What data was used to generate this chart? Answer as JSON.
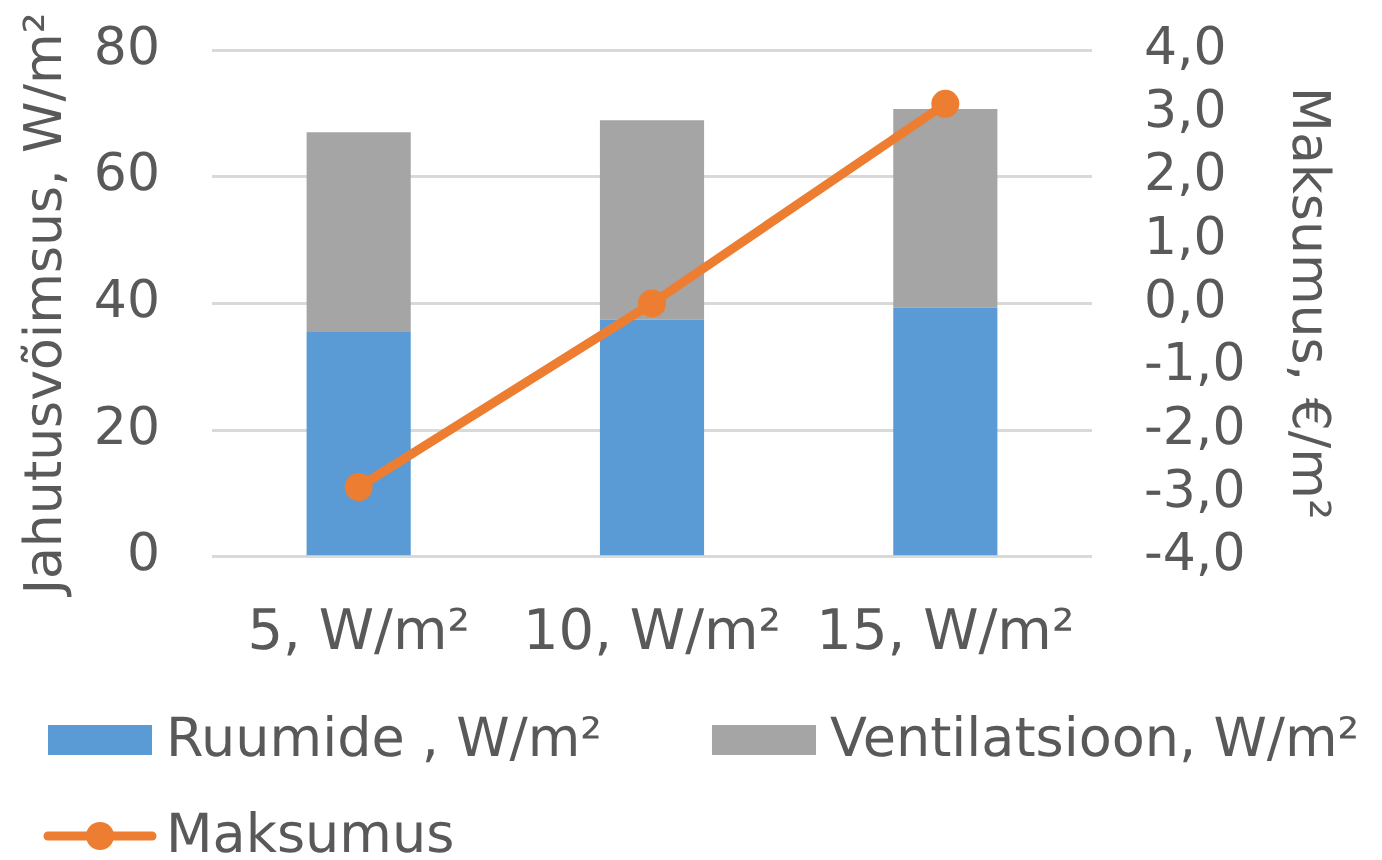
{
  "chart_data": {
    "type": "bar",
    "stacked": true,
    "categories": [
      "5, W/m²",
      "10, W/m²",
      "15, W/m²"
    ],
    "ylabel": "Jahutusvõimsus, W/m²",
    "y2label": "Maksumus, €/m²",
    "series": [
      {
        "name": "Ruumide , W/m²",
        "color": "#5b9bd5",
        "values": [
          35.5,
          37.4,
          39.3
        ]
      },
      {
        "name": "Ventilatsioon, W/m²",
        "color": "#a5a5a5",
        "values": [
          31.5,
          31.5,
          31.4
        ]
      },
      {
        "name": "Maksumus",
        "type": "line",
        "axis": "y2",
        "color": "#ed7d31",
        "values": [
          -2.9,
          0.0,
          3.15
        ]
      }
    ],
    "ylim": [
      0,
      80
    ],
    "yticks": [
      0,
      20,
      40,
      60,
      80
    ],
    "y2lim": [
      -4,
      4
    ],
    "y2ticks": [
      {
        "value": -4,
        "label": "-4,0"
      },
      {
        "value": -3,
        "label": "-3,0"
      },
      {
        "value": -2,
        "label": "-2,0"
      },
      {
        "value": -1,
        "label": "-1,0"
      },
      {
        "value": 0,
        "label": "0,0"
      },
      {
        "value": 1,
        "label": "1,0"
      },
      {
        "value": 2,
        "label": "2,0"
      },
      {
        "value": 3,
        "label": "3,0"
      },
      {
        "value": 4,
        "label": "4,0"
      }
    ],
    "grid": "y",
    "legend": "bottom",
    "marker": "circle"
  }
}
